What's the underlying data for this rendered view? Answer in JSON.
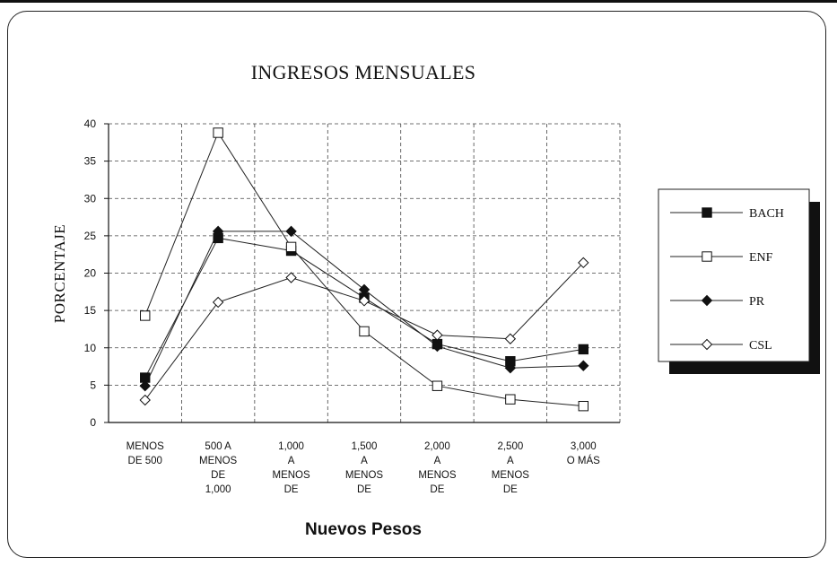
{
  "chart_data": {
    "type": "line",
    "title": "INGRESOS MENSUALES",
    "xlabel": "Nuevos Pesos",
    "ylabel": "PORCENTAJE",
    "ylim": [
      0,
      40
    ],
    "yticks": [
      0,
      5,
      10,
      15,
      20,
      25,
      30,
      35,
      40
    ],
    "grid": true,
    "legend_position": "right",
    "categories": [
      [
        "MENOS",
        "DE 500"
      ],
      [
        "500 A",
        "MENOS",
        "DE",
        "1,000"
      ],
      [
        "1,000",
        "A",
        "MENOS",
        "DE"
      ],
      [
        "1,500",
        "A",
        "MENOS",
        "DE"
      ],
      [
        "2,000",
        "A",
        "MENOS",
        "DE"
      ],
      [
        "2,500",
        "A",
        "MENOS",
        "DE"
      ],
      [
        "3,000",
        "O MÁS"
      ]
    ],
    "series": [
      {
        "name": "BACH",
        "marker": "square-filled",
        "values": [
          6,
          24.7,
          23,
          16.7,
          10.5,
          8.2,
          9.8
        ]
      },
      {
        "name": "ENF",
        "marker": "square-open",
        "values": [
          14.3,
          38.8,
          23.5,
          12.2,
          4.9,
          3.1,
          2.2
        ]
      },
      {
        "name": "PR",
        "marker": "diamond-filled",
        "values": [
          4.9,
          25.6,
          25.6,
          17.8,
          10.2,
          7.3,
          7.6
        ]
      },
      {
        "name": "CSL",
        "marker": "diamond-open",
        "values": [
          3,
          16.1,
          19.4,
          16.3,
          11.7,
          11.2,
          21.4
        ]
      }
    ]
  }
}
